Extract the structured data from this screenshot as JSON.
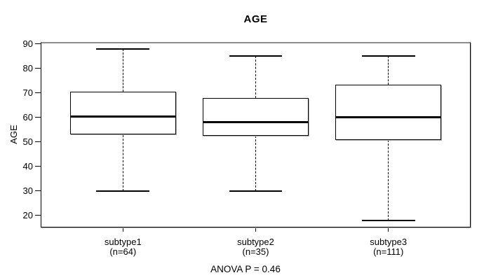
{
  "chart_data": {
    "type": "boxplot",
    "title": "AGE",
    "ylabel": "AGE",
    "xlabel": "",
    "annotation": "ANOVA P = 0.46",
    "ylim": [
      15.2,
      90.8
    ],
    "yticks": [
      20,
      30,
      40,
      50,
      60,
      70,
      80,
      90
    ],
    "xlim": [
      0.38,
      3.62
    ],
    "box_width": 0.8,
    "cap_width": 0.4,
    "grid": false,
    "legend": null,
    "categories": [
      "subtype1",
      "subtype2",
      "subtype3"
    ],
    "groups": [
      {
        "position": 1,
        "label": "subtype1",
        "count_label": "(n=64)",
        "n": 64,
        "stats": {
          "whisker_low": 30,
          "q1": 53,
          "median": 60.5,
          "q3": 70.5,
          "whisker_high": 88
        }
      },
      {
        "position": 2,
        "label": "subtype2",
        "count_label": "(n=35)",
        "n": 35,
        "stats": {
          "whisker_low": 30,
          "q1": 52.5,
          "median": 58,
          "q3": 68,
          "whisker_high": 85
        }
      },
      {
        "position": 3,
        "label": "subtype3",
        "count_label": "(n=111)",
        "n": 111,
        "stats": {
          "whisker_low": 18,
          "q1": 51,
          "median": 60,
          "q3": 73.5,
          "whisker_high": 85
        }
      }
    ]
  },
  "colors": {
    "background": "#ffffff",
    "line": "#000000",
    "frame_top": "#8e8e8e",
    "shadow": "#b4b4b4"
  }
}
